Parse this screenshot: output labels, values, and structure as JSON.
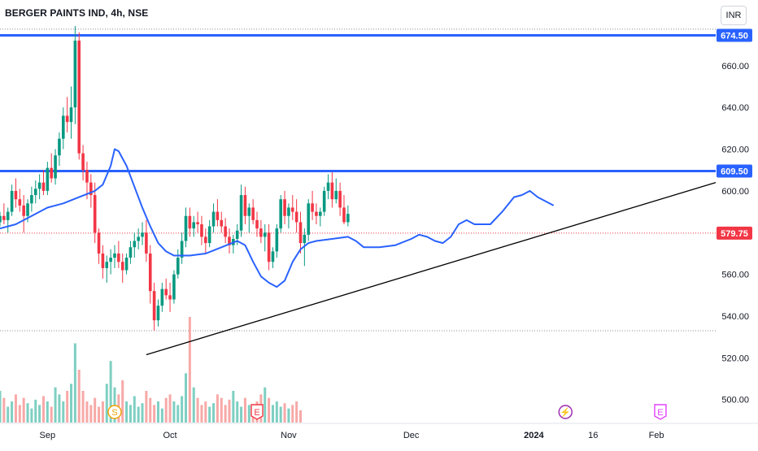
{
  "header": {
    "title": "BERGER PAINTS IND, 4h, NSE",
    "currency": "INR"
  },
  "chart_data": {
    "type": "candlestick",
    "price_axis": {
      "ticks": [
        500,
        520,
        540,
        560,
        580,
        600,
        620,
        640,
        660
      ],
      "labels": [
        "500.00",
        "520.00",
        "540.00",
        "560.00",
        "580.00",
        "600.00",
        "620.00",
        "640.00",
        "660.00"
      ],
      "ylim": [
        489,
        679
      ]
    },
    "time_axis": {
      "labels": [
        "Sep",
        "Oct",
        "Nov",
        "Dec",
        "2024",
        "16",
        "Feb"
      ],
      "label_days": [
        0,
        31,
        61,
        92,
        123,
        138,
        154
      ],
      "xlim_days": [
        -12,
        169
      ]
    },
    "horizontal_levels": [
      {
        "label": "674.50",
        "value": 674.5,
        "color": "#2962ff"
      },
      {
        "label": "609.50",
        "value": 609.5,
        "color": "#2962ff"
      },
      {
        "label": "579.75",
        "value": 579.75,
        "color": "#f23645"
      }
    ],
    "dotted_levels": [
      677.5,
      533
    ],
    "trendline": {
      "start": {
        "day": 25,
        "price": 521.5
      },
      "end": {
        "day": 169,
        "price": 604
      },
      "color": "#000000"
    },
    "moving_average": {
      "color": "#2962ff",
      "points": [
        [
          -12,
          582
        ],
        [
          -8,
          584
        ],
        [
          -4,
          588
        ],
        [
          0,
          592
        ],
        [
          4,
          594
        ],
        [
          8,
          597
        ],
        [
          12,
          600
        ],
        [
          14,
          603
        ],
        [
          16,
          612
        ],
        [
          17,
          620
        ],
        [
          18,
          619
        ],
        [
          20,
          612
        ],
        [
          22,
          602
        ],
        [
          24,
          592
        ],
        [
          26,
          583
        ],
        [
          28,
          575
        ],
        [
          30,
          571
        ],
        [
          32,
          569
        ],
        [
          36,
          569
        ],
        [
          40,
          570
        ],
        [
          44,
          573
        ],
        [
          48,
          576
        ],
        [
          50,
          574
        ],
        [
          52,
          566
        ],
        [
          54,
          559
        ],
        [
          56,
          556
        ],
        [
          58,
          554
        ],
        [
          60,
          557
        ],
        [
          62,
          566
        ],
        [
          64,
          572
        ],
        [
          66,
          575
        ],
        [
          68,
          576
        ],
        [
          72,
          577
        ],
        [
          76,
          578
        ],
        [
          78,
          576
        ],
        [
          80,
          573
        ],
        [
          84,
          573
        ],
        [
          88,
          574
        ],
        [
          92,
          577
        ],
        [
          94,
          579
        ],
        [
          96,
          578
        ],
        [
          98,
          576
        ],
        [
          100,
          575
        ],
        [
          102,
          578
        ],
        [
          104,
          584
        ],
        [
          106,
          586
        ],
        [
          108,
          584
        ],
        [
          112,
          584
        ],
        [
          115,
          590
        ],
        [
          118,
          597
        ],
        [
          120,
          598
        ],
        [
          122,
          600
        ],
        [
          124,
          597
        ],
        [
          126,
          595
        ],
        [
          128,
          593
        ]
      ]
    },
    "candles_ohlc": [
      [
        -12,
        585,
        590,
        583,
        588
      ],
      [
        -11,
        588,
        594,
        584,
        586
      ],
      [
        -10,
        586,
        592,
        580,
        590
      ],
      [
        -9,
        590,
        603,
        588,
        600
      ],
      [
        -8,
        600,
        606,
        592,
        596
      ],
      [
        -7,
        596,
        601,
        590,
        593
      ],
      [
        -6,
        593,
        598,
        580,
        588
      ],
      [
        -5,
        588,
        596,
        585,
        594
      ],
      [
        -4,
        594,
        602,
        590,
        598
      ],
      [
        -3,
        598,
        605,
        594,
        601
      ],
      [
        -2,
        601,
        608,
        596,
        604
      ],
      [
        -1,
        604,
        610,
        598,
        600
      ],
      [
        0,
        600,
        614,
        598,
        611
      ],
      [
        1,
        611,
        618,
        604,
        606
      ],
      [
        2,
        606,
        620,
        603,
        617
      ],
      [
        3,
        617,
        628,
        612,
        625
      ],
      [
        4,
        625,
        640,
        620,
        636
      ],
      [
        5,
        636,
        645,
        628,
        633
      ],
      [
        6,
        633,
        650,
        625,
        640
      ],
      [
        7,
        640,
        679,
        632,
        672
      ],
      [
        8,
        672,
        676,
        615,
        618
      ],
      [
        9,
        618,
        622,
        605,
        610
      ],
      [
        10,
        610,
        614,
        596,
        604
      ],
      [
        11,
        604,
        608,
        592,
        598
      ],
      [
        12,
        598,
        604,
        575,
        580
      ],
      [
        13,
        580,
        582,
        565,
        570
      ],
      [
        14,
        570,
        574,
        558,
        563
      ],
      [
        15,
        563,
        569,
        556,
        566
      ],
      [
        16,
        566,
        572,
        560,
        568
      ],
      [
        17,
        568,
        574,
        563,
        570
      ],
      [
        18,
        570,
        576,
        563,
        566
      ],
      [
        19,
        566,
        570,
        556,
        562
      ],
      [
        20,
        562,
        570,
        560,
        568
      ],
      [
        21,
        568,
        576,
        565,
        573
      ],
      [
        22,
        573,
        580,
        568,
        576
      ],
      [
        23,
        576,
        582,
        572,
        578
      ],
      [
        24,
        578,
        585,
        574,
        580
      ],
      [
        25,
        580,
        586,
        566,
        570
      ],
      [
        26,
        570,
        574,
        546,
        552
      ],
      [
        27,
        552,
        556,
        533,
        538
      ],
      [
        28,
        538,
        548,
        535,
        545
      ],
      [
        29,
        545,
        556,
        542,
        553
      ],
      [
        30,
        553,
        558,
        548,
        550
      ],
      [
        31,
        550,
        556,
        542,
        548
      ],
      [
        32,
        548,
        562,
        546,
        560
      ],
      [
        33,
        560,
        572,
        558,
        568
      ],
      [
        34,
        568,
        580,
        565,
        576
      ],
      [
        35,
        576,
        592,
        573,
        588
      ],
      [
        36,
        588,
        592,
        578,
        582
      ],
      [
        37,
        582,
        588,
        578,
        585
      ],
      [
        38,
        585,
        590,
        580,
        584
      ],
      [
        39,
        584,
        588,
        574,
        578
      ],
      [
        40,
        578,
        582,
        570,
        575
      ],
      [
        41,
        575,
        586,
        573,
        583
      ],
      [
        42,
        583,
        594,
        580,
        590
      ],
      [
        43,
        590,
        596,
        583,
        586
      ],
      [
        44,
        586,
        590,
        580,
        583
      ],
      [
        45,
        583,
        587,
        575,
        578
      ],
      [
        46,
        578,
        582,
        570,
        574
      ],
      [
        47,
        574,
        579,
        570,
        577
      ],
      [
        48,
        577,
        584,
        574,
        581
      ],
      [
        49,
        581,
        603,
        578,
        598
      ],
      [
        50,
        598,
        602,
        584,
        588
      ],
      [
        51,
        588,
        594,
        580,
        592
      ],
      [
        52,
        592,
        596,
        584,
        586
      ],
      [
        53,
        586,
        590,
        578,
        582
      ],
      [
        54,
        582,
        586,
        575,
        578
      ],
      [
        55,
        578,
        584,
        571,
        580
      ],
      [
        56,
        580,
        584,
        562,
        566
      ],
      [
        57,
        566,
        573,
        563,
        571
      ],
      [
        58,
        571,
        584,
        568,
        582
      ],
      [
        59,
        582,
        598,
        580,
        596
      ],
      [
        60,
        596,
        600,
        584,
        588
      ],
      [
        61,
        588,
        594,
        582,
        592
      ],
      [
        62,
        592,
        598,
        586,
        590
      ],
      [
        63,
        590,
        596,
        580,
        585
      ],
      [
        64,
        585,
        590,
        570,
        575
      ],
      [
        65,
        575,
        582,
        564,
        579
      ],
      [
        66,
        579,
        596,
        576,
        594
      ],
      [
        67,
        594,
        600,
        586,
        590
      ],
      [
        68,
        590,
        594,
        584,
        588
      ],
      [
        69,
        588,
        592,
        583,
        590
      ],
      [
        70,
        590,
        602,
        588,
        600
      ],
      [
        71,
        600,
        608,
        596,
        604
      ],
      [
        72,
        604,
        609,
        592,
        596
      ],
      [
        73,
        596,
        606,
        594,
        600
      ],
      [
        74,
        600,
        604,
        588,
        592
      ],
      [
        75,
        592,
        598,
        584,
        585
      ],
      [
        76,
        585,
        593,
        583,
        589
      ]
    ],
    "volume": [
      18,
      14,
      9,
      12,
      16,
      10,
      14,
      11,
      8,
      13,
      10,
      15,
      12,
      9,
      20,
      16,
      12,
      18,
      22,
      45,
      30,
      18,
      12,
      10,
      14,
      9,
      12,
      22,
      35,
      20,
      16,
      24,
      12,
      10,
      15,
      9,
      11,
      18,
      14,
      10,
      12,
      8,
      14,
      16,
      12,
      10,
      15,
      28,
      60,
      20,
      14,
      10,
      12,
      9,
      11,
      16,
      14,
      10,
      13,
      18,
      12,
      9,
      14,
      10,
      8,
      12,
      16,
      20,
      14,
      10,
      12,
      9,
      11,
      8,
      10,
      12,
      7
    ],
    "event_markers": [
      {
        "label": "S",
        "day": 17,
        "color": "#f0a202"
      },
      {
        "label": "E",
        "day": 53,
        "color": "#f23645"
      },
      {
        "label": "⚡",
        "day": 131,
        "color": "#9c27b0"
      },
      {
        "label": "E",
        "day": 155,
        "color": "#e040fb"
      }
    ],
    "colors": {
      "up": "#089981",
      "down": "#f23645",
      "volume_up": "#7ecfc2",
      "volume_down": "#f7a9a7"
    }
  }
}
